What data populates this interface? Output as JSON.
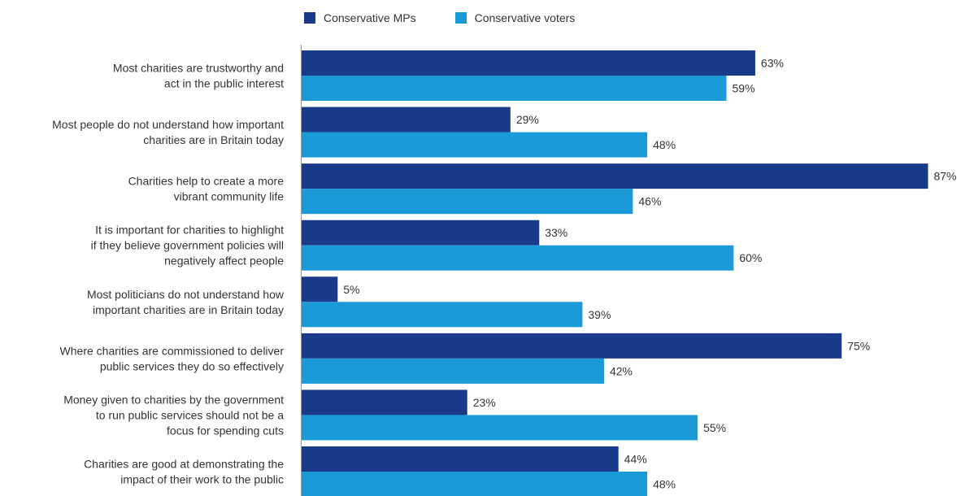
{
  "chart_data": {
    "type": "bar",
    "orientation": "horizontal",
    "categories": [
      [
        "Most charities are trustworthy and",
        "act in the public interest"
      ],
      [
        "Most people do not understand how important",
        "charities are in Britain today"
      ],
      [
        "Charities help to create a more",
        "vibrant community life"
      ],
      [
        "It is important for charities to highlight",
        "if they believe government policies will",
        "negatively affect people"
      ],
      [
        "Most politicians do not understand how",
        "important charities are in Britain today"
      ],
      [
        "Where charities are commissioned to deliver",
        "public services they do so effectively"
      ],
      [
        "Money given to charities by the government",
        "to run public services should not be a",
        "focus for spending cuts"
      ],
      [
        "Charities are good at demonstrating the",
        "impact of their work to the public"
      ]
    ],
    "series": [
      {
        "name": "Conservative MPs",
        "color": "#1a3a8a",
        "values": [
          63,
          29,
          87,
          33,
          5,
          75,
          23,
          44
        ]
      },
      {
        "name": "Conservative voters",
        "color": "#1a9ad6",
        "values": [
          59,
          48,
          46,
          60,
          39,
          42,
          55,
          48
        ]
      }
    ],
    "value_suffix": "%",
    "xlim": [
      0,
      100
    ],
    "legend_position": "top",
    "grid": false
  }
}
